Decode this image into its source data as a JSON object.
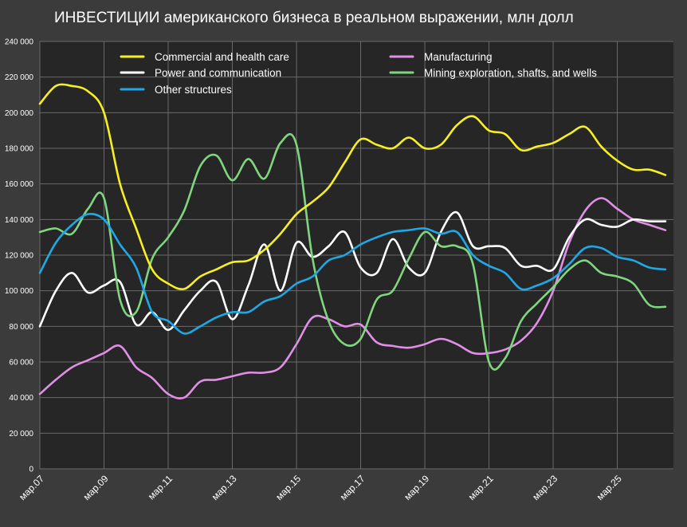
{
  "chart_data": {
    "type": "line",
    "title": "ИНВЕСТИЦИИ американского бизнеса в реальном выражении, млн долл",
    "xlabel": "",
    "ylabel": "",
    "ylim": [
      0,
      240000
    ],
    "yticks": [
      0,
      20000,
      40000,
      60000,
      80000,
      100000,
      120000,
      140000,
      160000,
      180000,
      200000,
      220000,
      240000
    ],
    "ytick_labels": [
      "0",
      "20 000",
      "40 000",
      "60 000",
      "80 000",
      "100 000",
      "120 000",
      "140 000",
      "160 000",
      "180 000",
      "200 000",
      "220 000",
      "240 000"
    ],
    "xlim": [
      2007.0,
      2026.75
    ],
    "xticks": [
      2007,
      2009,
      2011,
      2013,
      2015,
      2017,
      2019,
      2021,
      2023,
      2025
    ],
    "xtick_labels": [
      "мар.07",
      "мар.09",
      "мар.11",
      "мар.13",
      "мар.15",
      "мар.17",
      "мар.19",
      "мар.21",
      "мар.23",
      "мар.25"
    ],
    "grid": true,
    "legend": "top",
    "x": [
      2007.0,
      2007.5,
      2008.0,
      2008.5,
      2009.0,
      2009.5,
      2010.0,
      2010.5,
      2011.0,
      2011.5,
      2012.0,
      2012.5,
      2013.0,
      2013.5,
      2014.0,
      2014.5,
      2015.0,
      2015.5,
      2016.0,
      2016.5,
      2017.0,
      2017.5,
      2018.0,
      2018.5,
      2019.0,
      2019.5,
      2020.0,
      2020.5,
      2021.0,
      2021.5,
      2022.0,
      2022.5,
      2023.0,
      2023.5,
      2024.0,
      2024.5,
      2025.0,
      2025.5,
      2026.0,
      2026.5
    ],
    "series": [
      {
        "name": "Commercial and health care",
        "color": "#f7f021",
        "values": [
          205000,
          215000,
          215000,
          212000,
          200000,
          160000,
          135000,
          112000,
          104000,
          101000,
          108000,
          112000,
          116000,
          117000,
          123000,
          132000,
          143000,
          150000,
          158000,
          172000,
          185000,
          182000,
          180000,
          186000,
          180000,
          182000,
          193000,
          198000,
          190000,
          188000,
          179000,
          181000,
          183000,
          188000,
          192000,
          181000,
          173000,
          168000,
          168000,
          165000
        ]
      },
      {
        "name": "Manufacturing",
        "color": "#e08ee6",
        "values": [
          42000,
          50000,
          57000,
          61000,
          65000,
          69000,
          57000,
          51000,
          42000,
          40000,
          49000,
          50000,
          52000,
          54000,
          54000,
          57000,
          70000,
          85000,
          84000,
          80000,
          81000,
          71000,
          69000,
          68000,
          70000,
          73000,
          70000,
          65000,
          65000,
          67000,
          72000,
          82000,
          100000,
          127000,
          145000,
          152000,
          146000,
          140000,
          137000,
          134000
        ]
      },
      {
        "name": "Power and communication",
        "color": "#ffffff",
        "values": [
          80000,
          100000,
          110000,
          99000,
          103000,
          105000,
          81000,
          88000,
          78000,
          89000,
          100000,
          105000,
          84000,
          103000,
          126000,
          100000,
          127000,
          119000,
          125000,
          133000,
          113000,
          110000,
          129000,
          113000,
          110000,
          133000,
          144000,
          125000,
          125000,
          124000,
          114000,
          114000,
          112000,
          130000,
          140000,
          137000,
          136000,
          140000,
          139000,
          139000
        ]
      },
      {
        "name": "Mining exploration, shafts, and wells",
        "color": "#7fd67f",
        "values": [
          133000,
          135000,
          132000,
          146000,
          152000,
          95000,
          88000,
          118000,
          130000,
          145000,
          170000,
          176000,
          162000,
          174000,
          163000,
          183000,
          182000,
          118000,
          83000,
          70000,
          73000,
          95000,
          100000,
          118000,
          133000,
          125000,
          125000,
          115000,
          60000,
          62000,
          83000,
          93000,
          102000,
          112000,
          117000,
          110000,
          108000,
          104000,
          92000,
          91000
        ]
      },
      {
        "name": "Other structures",
        "color": "#1fa8e6",
        "values": [
          110000,
          127000,
          137000,
          143000,
          140000,
          126000,
          113000,
          88000,
          83000,
          76000,
          80000,
          85000,
          88000,
          88000,
          94000,
          97000,
          104000,
          108000,
          117000,
          120000,
          126000,
          130000,
          133000,
          134000,
          135000,
          132000,
          133000,
          120000,
          114000,
          110000,
          101000,
          103000,
          107000,
          115000,
          124000,
          124000,
          119000,
          117000,
          113000,
          112000
        ]
      }
    ]
  }
}
